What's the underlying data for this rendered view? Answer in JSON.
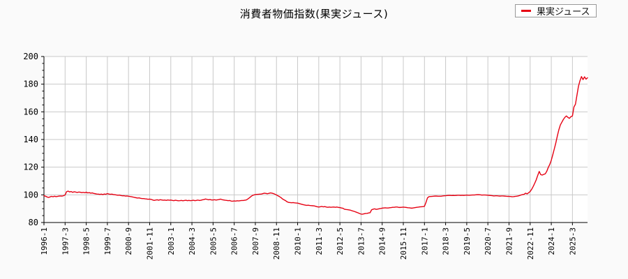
{
  "title": "消費者物価指数(果実ジュース)",
  "legend": {
    "label": "果実ジュース"
  },
  "chart_data": {
    "type": "line",
    "title": "消費者物価指数(果実ジュース)",
    "xlabel": "",
    "ylabel": "",
    "ylim": [
      80,
      200
    ],
    "y_major_ticks": [
      80,
      100,
      120,
      140,
      160,
      180,
      200
    ],
    "y_minor_tick_step": 5,
    "grid": true,
    "legend_position": "top-right",
    "colors": {
      "series": "#e60012",
      "grid": "#c8c8c8",
      "axis": "#000000",
      "plot_bg": "#ffffff",
      "page_bg": "#fafafa"
    },
    "x_start_month": "1996-1",
    "frequency": "monthly",
    "x_tick_interval_months": 14,
    "x_tick_labels": [
      "1996-1",
      "1997-3",
      "1998-5",
      "1999-7",
      "2000-9",
      "2001-11",
      "2003-1",
      "2004-3",
      "2005-5",
      "2006-7",
      "2007-9",
      "2008-11",
      "2010-1",
      "2011-3",
      "2012-5",
      "2013-7",
      "2014-9",
      "2015-11",
      "2017-1",
      "2018-3",
      "2019-5",
      "2020-7",
      "2021-9",
      "2022-11",
      "2024-1",
      "2025-3"
    ],
    "series": [
      {
        "name": "果実ジュース",
        "color": "#e60012",
        "values": [
          99.4,
          99.0,
          98.5,
          98.1,
          98.5,
          98.9,
          98.6,
          99.0,
          98.7,
          98.9,
          99.1,
          99.2,
          99.1,
          99.4,
          99.9,
          102.3,
          102.7,
          102.1,
          102.4,
          101.8,
          102.2,
          102.0,
          101.7,
          102.0,
          101.9,
          101.6,
          101.8,
          101.5,
          101.9,
          101.4,
          101.6,
          101.2,
          101.4,
          101.0,
          100.8,
          100.6,
          100.5,
          100.3,
          100.5,
          100.2,
          100.6,
          100.4,
          100.9,
          100.6,
          100.4,
          100.5,
          100.2,
          100.1,
          99.9,
          99.7,
          99.8,
          99.5,
          99.3,
          99.4,
          99.1,
          99.2,
          99.0,
          98.8,
          98.6,
          98.4,
          98.1,
          97.9,
          97.7,
          97.8,
          97.5,
          97.3,
          97.3,
          97.1,
          97.0,
          96.8,
          96.9,
          96.7,
          96.3,
          96.0,
          96.2,
          96.4,
          96.1,
          96.5,
          96.3,
          96.1,
          96.2,
          96.0,
          96.3,
          96.1,
          96.2,
          96.0,
          95.8,
          96.1,
          95.9,
          95.7,
          95.8,
          96.0,
          95.7,
          95.9,
          96.1,
          95.8,
          96.0,
          95.8,
          95.9,
          96.1,
          95.8,
          96.0,
          96.2,
          95.9,
          96.1,
          96.4,
          96.6,
          97.0,
          96.7,
          96.4,
          96.6,
          96.3,
          96.3,
          96.5,
          96.2,
          96.4,
          96.6,
          96.9,
          96.5,
          96.3,
          96.1,
          96.0,
          95.8,
          95.9,
          95.5,
          95.4,
          95.6,
          95.5,
          95.7,
          95.6,
          95.8,
          95.9,
          95.9,
          96.1,
          96.3,
          97.0,
          97.8,
          98.7,
          99.5,
          99.9,
          100.2,
          100.3,
          100.4,
          100.5,
          100.6,
          100.9,
          101.2,
          101.0,
          100.8,
          101.1,
          101.4,
          101.2,
          100.9,
          100.4,
          99.9,
          99.3,
          98.7,
          98.0,
          97.0,
          96.4,
          95.8,
          95.0,
          94.5,
          94.4,
          94.3,
          94.4,
          94.2,
          94.1,
          94.0,
          93.7,
          93.4,
          93.1,
          92.8,
          92.6,
          92.4,
          92.5,
          92.3,
          92.2,
          92.1,
          92.0,
          91.7,
          91.4,
          91.2,
          91.4,
          91.6,
          91.3,
          91.5,
          91.2,
          91.0,
          91.2,
          91.0,
          91.1,
          91.2,
          91.0,
          91.2,
          90.9,
          90.8,
          90.5,
          90.3,
          89.6,
          89.4,
          89.3,
          89.1,
          88.9,
          88.5,
          88.2,
          87.8,
          87.4,
          87.0,
          86.5,
          86.1,
          86.0,
          86.3,
          86.5,
          86.6,
          86.9,
          87.1,
          89.2,
          89.6,
          89.9,
          89.5,
          89.7,
          89.9,
          90.1,
          90.4,
          90.5,
          90.6,
          90.5,
          90.5,
          90.7,
          90.8,
          91.0,
          91.0,
          91.2,
          91.2,
          90.9,
          90.9,
          91.0,
          91.1,
          91.0,
          90.9,
          90.7,
          90.6,
          90.4,
          90.4,
          90.6,
          90.8,
          91.0,
          91.1,
          91.3,
          91.4,
          91.5,
          91.7,
          94.5,
          97.8,
          98.7,
          98.8,
          98.9,
          99.0,
          99.1,
          99.1,
          99.0,
          99.0,
          99.0,
          99.2,
          99.3,
          99.4,
          99.5,
          99.6,
          99.6,
          99.5,
          99.6,
          99.5,
          99.6,
          99.7,
          99.7,
          99.6,
          99.7,
          99.6,
          99.7,
          99.8,
          99.7,
          99.7,
          99.8,
          99.9,
          99.9,
          100.0,
          100.1,
          100.1,
          100.0,
          99.8,
          99.9,
          99.9,
          99.8,
          99.7,
          99.6,
          99.5,
          99.4,
          99.2,
          99.3,
          99.3,
          99.2,
          99.1,
          99.2,
          99.2,
          99.1,
          99.0,
          98.9,
          98.9,
          98.8,
          98.6,
          98.7,
          98.9,
          99.0,
          99.2,
          99.5,
          99.9,
          100.2,
          100.4,
          101.2,
          100.7,
          101.5,
          102.4,
          104.0,
          106.0,
          108.3,
          110.8,
          114.0,
          116.9,
          114.6,
          114.3,
          114.8,
          115.2,
          117.0,
          119.8,
          122.0,
          125.0,
          129.0,
          133.2,
          137.5,
          142.5,
          147.0,
          150.5,
          152.5,
          154.5,
          156.0,
          157.0,
          156.0,
          155.3,
          156.5,
          157.0,
          163.5,
          165.5,
          172.0,
          178.5,
          182.5,
          185.5,
          183.3,
          185.3,
          183.6,
          184.6
        ]
      }
    ]
  }
}
